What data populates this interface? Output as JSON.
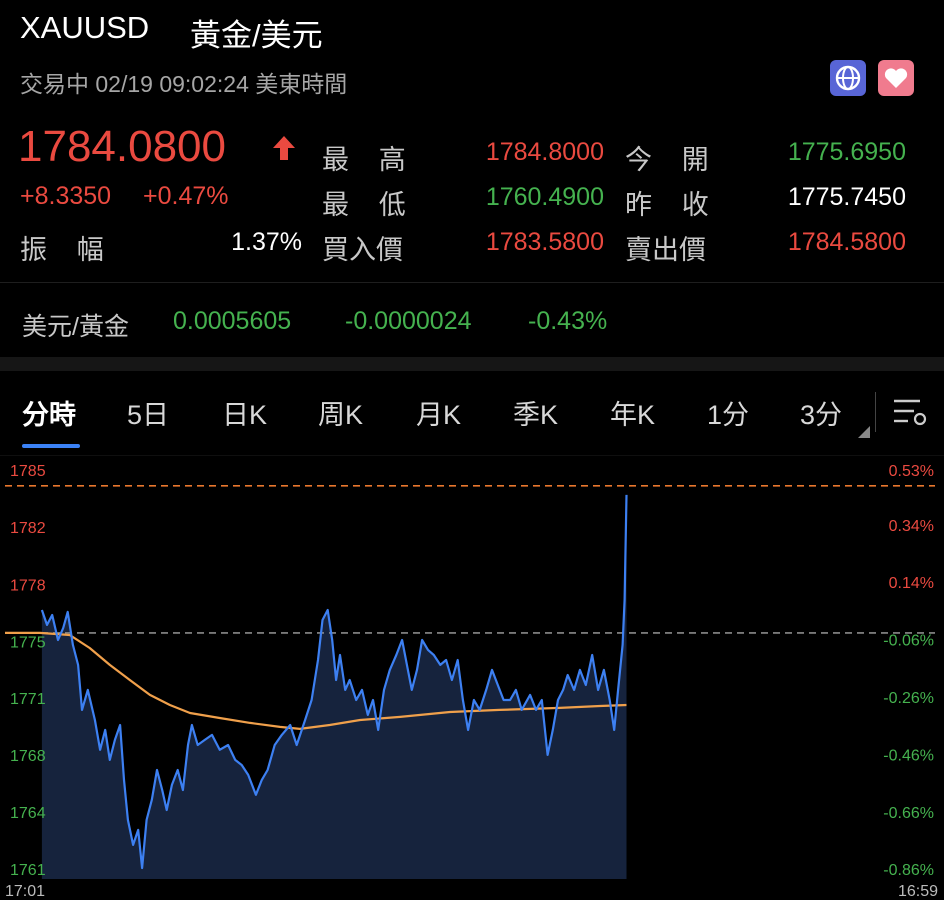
{
  "header": {
    "symbol": "XAUUSD",
    "name": "黃金/美元",
    "status": "交易中 02/19 09:02:24 美東時間"
  },
  "quote": {
    "price": "1784.0800",
    "change": "+8.3350",
    "change_pct": "+0.47%",
    "amplitude": {
      "label": "振幅",
      "value": "1.37%"
    },
    "high": {
      "label": "最高",
      "value": "1784.8000"
    },
    "low": {
      "label": "最低",
      "value": "1760.4900"
    },
    "bid": {
      "label": "買入價",
      "value": "1783.5800"
    },
    "open": {
      "label": "今開",
      "value": "1775.6950"
    },
    "prev_close": {
      "label": "昨收",
      "value": "1775.7450"
    },
    "ask": {
      "label": "賣出價",
      "value": "1784.5800"
    }
  },
  "cross": {
    "pair": "美元/黃金",
    "value": "0.0005605",
    "change": "-0.0000024",
    "change_pct": "-0.43%"
  },
  "tabs": [
    "分時",
    "5日",
    "日K",
    "周K",
    "月K",
    "季K",
    "年K",
    "1分",
    "3分"
  ],
  "chart_data": {
    "type": "line",
    "xlim": [
      0,
      1438
    ],
    "xticks": [
      {
        "value": 0,
        "label": "17:01"
      },
      {
        "value": 1438,
        "label": "16:59"
      }
    ],
    "ylim": [
      1760.6,
      1785.16
    ],
    "yticks": [
      {
        "value": 1785.16,
        "label": "1785"
      },
      {
        "value": 1781.65,
        "label": "1782"
      },
      {
        "value": 1778.14,
        "label": "1778"
      },
      {
        "value": 1774.63,
        "label": "1775"
      },
      {
        "value": 1771.13,
        "label": "1771"
      },
      {
        "value": 1767.62,
        "label": "1768"
      },
      {
        "value": 1764.11,
        "label": "1764"
      },
      {
        "value": 1760.6,
        "label": "1761"
      }
    ],
    "y2lim": [
      -0.86,
      0.53
    ],
    "y2ticks": [
      {
        "value": 0.53,
        "label": "0.53%"
      },
      {
        "value": 0.34,
        "label": "0.34%"
      },
      {
        "value": 0.14,
        "label": "0.14%"
      },
      {
        "value": -0.06,
        "label": "-0.06%"
      },
      {
        "value": -0.26,
        "label": "-0.26%"
      },
      {
        "value": -0.46,
        "label": "-0.46%"
      },
      {
        "value": -0.66,
        "label": "-0.66%"
      },
      {
        "value": -0.86,
        "label": "-0.86%"
      }
    ],
    "up_color": "#ea4a40",
    "down_color": "#45b24f",
    "reference_lines": [
      {
        "value": 1784.8,
        "color": "#e8772e"
      },
      {
        "value": 1775.745,
        "color": "#8a8a8a"
      }
    ],
    "series": [
      {
        "color": "#3d80f2",
        "area": "#16233d",
        "x": [
          57,
          65,
          73,
          82,
          90,
          97,
          105,
          113,
          119,
          128,
          139,
          147,
          155,
          162,
          170,
          178,
          184,
          190,
          198,
          206,
          212,
          219,
          227,
          235,
          243,
          250,
          258,
          267,
          275,
          283,
          289,
          298,
          309,
          320,
          332,
          345,
          356,
          366,
          376,
          388,
          397,
          406,
          417,
          428,
          441,
          451,
          464,
          474,
          484,
          491,
          499,
          506,
          512,
          518,
          526,
          533,
          543,
          552,
          561,
          569,
          577,
          586,
          595,
          605,
          614,
          623,
          629,
          637,
          645,
          654,
          663,
          673,
          682,
          691,
          700,
          708,
          716,
          725,
          734,
          744,
          753,
          762,
          771,
          781,
          790,
          799,
          812,
          821,
          830,
          839,
          847,
          855,
          863,
          870,
          880,
          889,
          898,
          908,
          917,
          926,
          935,
          942,
          948,
          955,
          958,
          961
        ],
        "values": [
          1777.16,
          1776.24,
          1776.85,
          1775.31,
          1776.05,
          1777.04,
          1775.01,
          1773.78,
          1771.01,
          1772.24,
          1770.39,
          1768.55,
          1769.78,
          1767.93,
          1769.16,
          1770.08,
          1766.7,
          1764.24,
          1762.7,
          1763.62,
          1761.28,
          1764.24,
          1765.47,
          1767.31,
          1766.08,
          1764.85,
          1766.39,
          1767.31,
          1766.08,
          1768.85,
          1770.08,
          1768.85,
          1769.16,
          1769.47,
          1768.55,
          1768.85,
          1767.93,
          1767.62,
          1767.01,
          1765.78,
          1766.7,
          1767.31,
          1768.85,
          1769.47,
          1770.08,
          1768.85,
          1770.39,
          1771.62,
          1774.08,
          1776.54,
          1777.16,
          1775.31,
          1772.85,
          1774.39,
          1772.24,
          1772.85,
          1771.62,
          1772.24,
          1770.7,
          1771.62,
          1769.78,
          1772.24,
          1773.47,
          1774.39,
          1775.31,
          1773.47,
          1772.24,
          1773.47,
          1775.31,
          1774.7,
          1774.39,
          1773.78,
          1774.08,
          1772.85,
          1774.08,
          1771.62,
          1769.78,
          1771.62,
          1771.01,
          1772.24,
          1773.47,
          1772.54,
          1771.62,
          1771.62,
          1772.24,
          1771.01,
          1771.93,
          1771.01,
          1771.62,
          1768.24,
          1769.78,
          1771.62,
          1772.24,
          1773.16,
          1772.24,
          1773.47,
          1772.54,
          1774.39,
          1772.24,
          1773.47,
          1771.62,
          1769.78,
          1772.24,
          1775.01,
          1777.78,
          1784.24
        ]
      },
      {
        "color": "#f0a04b",
        "x": [
          0,
          54,
          100,
          131,
          162,
          193,
          224,
          255,
          286,
          332,
          379,
          425,
          456,
          502,
          549,
          611,
          688,
          765,
          858,
          920,
          961
        ],
        "values": [
          1775.75,
          1775.75,
          1775.62,
          1774.82,
          1773.78,
          1772.85,
          1771.93,
          1771.31,
          1770.82,
          1770.51,
          1770.21,
          1769.96,
          1769.84,
          1770.08,
          1770.39,
          1770.58,
          1770.88,
          1771.01,
          1771.13,
          1771.25,
          1771.31
        ]
      }
    ]
  }
}
